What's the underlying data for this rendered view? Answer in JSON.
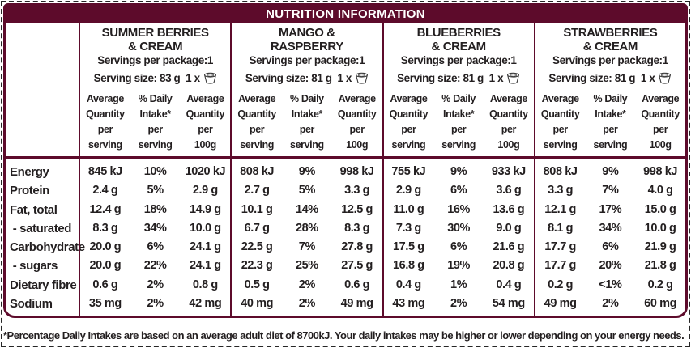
{
  "title": "NUTRITION INFORMATION",
  "footnote": "*Percentage Daily Intakes are based on an average adult diet of 8700kJ. Your daily intakes may be higher or lower depending on your energy needs.",
  "colors": {
    "maroon": "#5d0b2b",
    "text": "#231f20",
    "title_text": "#ffffff"
  },
  "icons": {
    "serving_unit": "yogurt-cup-icon"
  },
  "row_labels": [
    "Energy",
    "Protein",
    "Fat, total",
    " - saturated",
    "Carbohydrate",
    " - sugars",
    "Dietary fibre",
    "Sodium"
  ],
  "sub_headers": [
    [
      "Average",
      "Quantity",
      "per",
      "serving"
    ],
    [
      "% Daily",
      "Intake*",
      "per",
      "serving"
    ],
    [
      "Average",
      "Quantity",
      "per",
      "100g"
    ]
  ],
  "products": [
    {
      "name_line1": "SUMMER BERRIES",
      "name_line2": "& CREAM",
      "servings_per_package": "Servings per package:1",
      "serving_size": "Serving size: 83 g  1 x",
      "values": [
        [
          "845 kJ",
          "10%",
          "1020 kJ"
        ],
        [
          "2.4 g",
          "5%",
          "2.9 g"
        ],
        [
          "12.4 g",
          "18%",
          "14.9 g"
        ],
        [
          "8.3 g",
          "34%",
          "10.0 g"
        ],
        [
          "20.0 g",
          "6%",
          "24.1 g"
        ],
        [
          "20.0 g",
          "22%",
          "24.1 g"
        ],
        [
          "0.6 g",
          "2%",
          "0.8 g"
        ],
        [
          "35 mg",
          "2%",
          "42 mg"
        ]
      ]
    },
    {
      "name_line1": "MANGO &",
      "name_line2": "RASPBERRY",
      "servings_per_package": "Servings per package:1",
      "serving_size": "Serving size: 81 g  1 x",
      "values": [
        [
          "808 kJ",
          "9%",
          "998 kJ"
        ],
        [
          "2.7 g",
          "5%",
          "3.3 g"
        ],
        [
          "10.1 g",
          "14%",
          "12.5 g"
        ],
        [
          "6.7 g",
          "28%",
          "8.3 g"
        ],
        [
          "22.5 g",
          "7%",
          "27.8 g"
        ],
        [
          "22.3 g",
          "25%",
          "27.5 g"
        ],
        [
          "0.5 g",
          "2%",
          "0.6 g"
        ],
        [
          "40 mg",
          "2%",
          "49 mg"
        ]
      ]
    },
    {
      "name_line1": "BLUEBERRIES",
      "name_line2": "& CREAM",
      "servings_per_package": "Servings per package:1",
      "serving_size": "Serving size: 81 g  1 x",
      "values": [
        [
          "755 kJ",
          "9%",
          "933 kJ"
        ],
        [
          "2.9 g",
          "6%",
          "3.6 g"
        ],
        [
          "11.0 g",
          "16%",
          "13.6 g"
        ],
        [
          "7.3 g",
          "30%",
          "9.0 g"
        ],
        [
          "17.5 g",
          "6%",
          "21.6 g"
        ],
        [
          "16.8 g",
          "19%",
          "20.8 g"
        ],
        [
          "0.4 g",
          "1%",
          "0.4 g"
        ],
        [
          "43 mg",
          "2%",
          "54 mg"
        ]
      ]
    },
    {
      "name_line1": "STRAWBERRIES",
      "name_line2": "& CREAM",
      "servings_per_package": "Servings per package:1",
      "serving_size": "Serving size: 81 g  1 x",
      "values": [
        [
          "808 kJ",
          "9%",
          "998 kJ"
        ],
        [
          "3.3 g",
          "7%",
          "4.0 g"
        ],
        [
          "12.1 g",
          "17%",
          "15.0 g"
        ],
        [
          "8.1 g",
          "34%",
          "10.0 g"
        ],
        [
          "17.7 g",
          "6%",
          "21.9 g"
        ],
        [
          "17.7 g",
          "20%",
          "21.8 g"
        ],
        [
          "0.2 g",
          "<1%",
          "0.2 g"
        ],
        [
          "49 mg",
          "2%",
          "60 mg"
        ]
      ]
    }
  ]
}
